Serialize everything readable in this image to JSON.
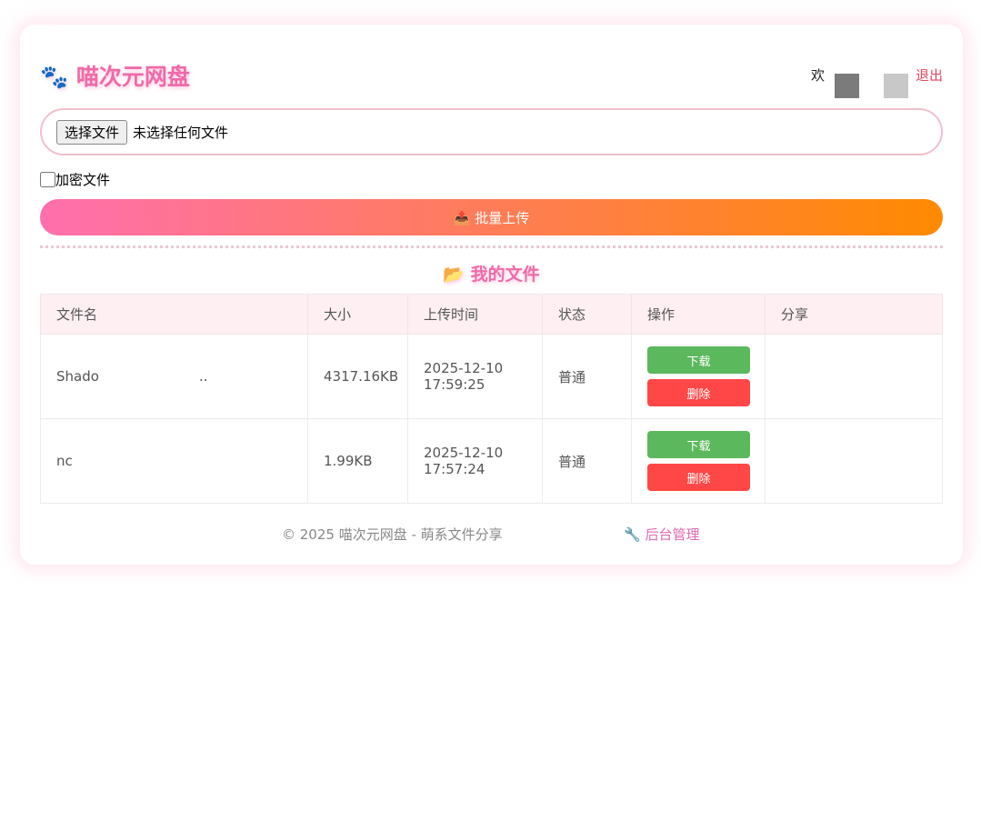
{
  "header": {
    "logo_icon": "🐾",
    "title": "喵次元网盘",
    "welcome": "欢",
    "logout": "退出"
  },
  "upload": {
    "choose_label": "选择文件",
    "no_file": "未选择任何文件",
    "encrypt_label": "加密文件",
    "upload_label": "📤 批量上传"
  },
  "files": {
    "title": "📂 我的文件",
    "columns": [
      "文件名",
      "大小",
      "上传时间",
      "状态",
      "操作",
      "分享"
    ],
    "rows": [
      {
        "name": "Shado",
        "name_tail": "..",
        "size": "4317.16KB",
        "date": "2025-12-10",
        "time": "17:59:25",
        "status": "普通",
        "download": "下载",
        "delete": "删除",
        "share": ""
      },
      {
        "name": "nc",
        "name_tail": "",
        "size": "1.99KB",
        "date": "2025-12-10",
        "time": "17:57:24",
        "status": "普通",
        "download": "下载",
        "delete": "删除",
        "share": ""
      }
    ]
  },
  "footer": {
    "copyright": "© 2025 喵次元网盘 - 萌系文件分享",
    "admin": "🔧 后台管理"
  }
}
